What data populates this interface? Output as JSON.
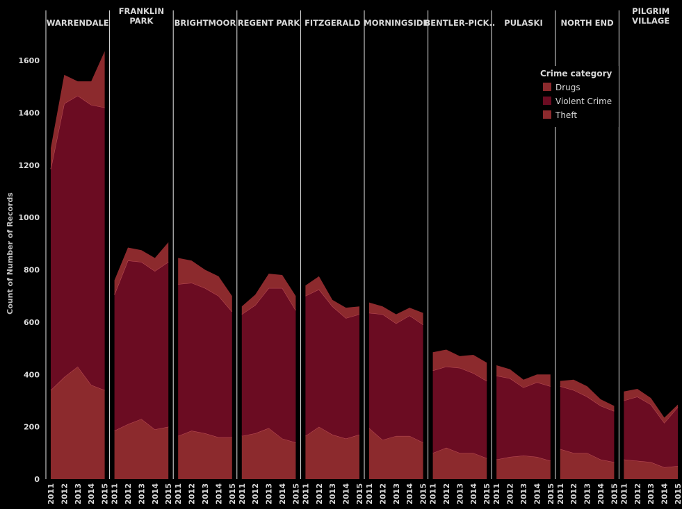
{
  "chart_data": {
    "type": "area",
    "stacked": true,
    "ylabel": "Count of Number of Records",
    "ylim": [
      0,
      1700
    ],
    "yticks": [
      0,
      200,
      400,
      600,
      800,
      1000,
      1200,
      1400,
      1600
    ],
    "x": [
      "2011",
      "2012",
      "2013",
      "2014",
      "2015"
    ],
    "legend": {
      "title": "Crime category",
      "position": "top-right",
      "items": [
        {
          "name": "Drugs",
          "color": "#8c2a2d"
        },
        {
          "name": "Violent Crime",
          "color": "#6b0c22"
        },
        {
          "name": "Theft",
          "color": "#8c2a2d"
        }
      ]
    },
    "colors": {
      "theft": "#8c2a2d",
      "violent": "#6b0c22",
      "drugs": "#8c2a2d",
      "boundary": "#c0505a"
    },
    "panels": [
      {
        "title": [
          "WARRENDALE"
        ],
        "series": [
          {
            "name": "Theft",
            "values": [
              340,
              390,
              430,
              360,
              340
            ]
          },
          {
            "name": "Violent Crime",
            "values": [
              845,
              1045,
              1035,
              1070,
              1080
            ]
          },
          {
            "name": "Drugs",
            "values": [
              80,
              110,
              55,
              90,
              215
            ]
          }
        ]
      },
      {
        "title": [
          "FRANKLIN",
          "PARK"
        ],
        "series": [
          {
            "name": "Theft",
            "values": [
              185,
              210,
              230,
              190,
              200
            ]
          },
          {
            "name": "Violent Crime",
            "values": [
              520,
              625,
              600,
              605,
              630
            ]
          },
          {
            "name": "Drugs",
            "values": [
              55,
              50,
              45,
              50,
              75
            ]
          }
        ]
      },
      {
        "title": [
          "BRIGHTMOOR"
        ],
        "series": [
          {
            "name": "Theft",
            "values": [
              165,
              185,
              175,
              160,
              160
            ]
          },
          {
            "name": "Violent Crime",
            "values": [
              580,
              565,
              555,
              540,
              480
            ]
          },
          {
            "name": "Drugs",
            "values": [
              100,
              85,
              70,
              75,
              60
            ]
          }
        ]
      },
      {
        "title": [
          "REGENT PARK"
        ],
        "series": [
          {
            "name": "Theft",
            "values": [
              165,
              175,
              195,
              155,
              140
            ]
          },
          {
            "name": "Violent Crime",
            "values": [
              465,
              490,
              535,
              575,
              505
            ]
          },
          {
            "name": "Drugs",
            "values": [
              30,
              40,
              55,
              50,
              55
            ]
          }
        ]
      },
      {
        "title": [
          "FITZGERALD"
        ],
        "series": [
          {
            "name": "Theft",
            "values": [
              165,
              200,
              170,
              155,
              170
            ]
          },
          {
            "name": "Violent Crime",
            "values": [
              535,
              525,
              490,
              460,
              460
            ]
          },
          {
            "name": "Drugs",
            "values": [
              40,
              50,
              25,
              40,
              30
            ]
          }
        ]
      },
      {
        "title": [
          "MORNINGSIDE"
        ],
        "series": [
          {
            "name": "Theft",
            "values": [
              195,
              150,
              165,
              165,
              140
            ]
          },
          {
            "name": "Violent Crime",
            "values": [
              440,
              480,
              430,
              460,
              450
            ]
          },
          {
            "name": "Drugs",
            "values": [
              40,
              30,
              35,
              30,
              45
            ]
          }
        ]
      },
      {
        "title": [
          "BENTLER-PICK.."
        ],
        "series": [
          {
            "name": "Theft",
            "values": [
              100,
              120,
              100,
              100,
              80
            ]
          },
          {
            "name": "Violent Crime",
            "values": [
              315,
              310,
              325,
              305,
              295
            ]
          },
          {
            "name": "Drugs",
            "values": [
              70,
              65,
              45,
              70,
              70
            ]
          }
        ]
      },
      {
        "title": [
          "PULASKI"
        ],
        "series": [
          {
            "name": "Theft",
            "values": [
              75,
              85,
              90,
              85,
              70
            ]
          },
          {
            "name": "Violent Crime",
            "values": [
              320,
              300,
              260,
              285,
              285
            ]
          },
          {
            "name": "Drugs",
            "values": [
              40,
              35,
              30,
              30,
              45
            ]
          }
        ]
      },
      {
        "title": [
          "NORTH END"
        ],
        "series": [
          {
            "name": "Theft",
            "values": [
              115,
              100,
              100,
              75,
              65
            ]
          },
          {
            "name": "Violent Crime",
            "values": [
              240,
              240,
              215,
              205,
              195
            ]
          },
          {
            "name": "Drugs",
            "values": [
              20,
              40,
              40,
              25,
              20
            ]
          }
        ]
      },
      {
        "title": [
          "PILGRIM",
          "VILLAGE"
        ],
        "series": [
          {
            "name": "Theft",
            "values": [
              75,
              70,
              65,
              45,
              50
            ]
          },
          {
            "name": "Violent Crime",
            "values": [
              225,
              245,
              220,
              170,
              225
            ]
          },
          {
            "name": "Drugs",
            "values": [
              35,
              30,
              25,
              20,
              10
            ]
          }
        ]
      }
    ]
  }
}
